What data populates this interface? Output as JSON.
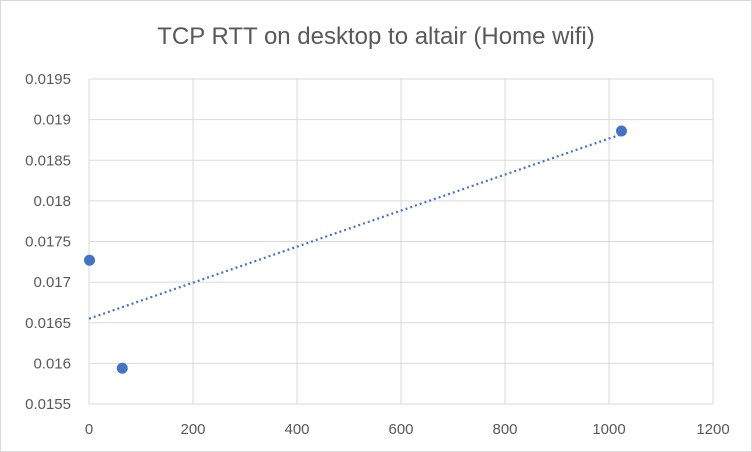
{
  "chart_data": {
    "type": "scatter",
    "title": "TCP RTT on desktop to altair (Home wifi)",
    "xlabel": "",
    "ylabel": "",
    "xlim": [
      0,
      1200
    ],
    "ylim": [
      0.0155,
      0.0195
    ],
    "x_ticks": [
      "0",
      "200",
      "400",
      "600",
      "800",
      "1000",
      "1200"
    ],
    "y_ticks": [
      "0.0155",
      "0.016",
      "0.0165",
      "0.017",
      "0.0175",
      "0.018",
      "0.0185",
      "0.019",
      "0.0195"
    ],
    "grid": true,
    "legend": "none",
    "series": [
      {
        "points": [
          {
            "x": 1,
            "y": 0.01727
          },
          {
            "x": 64,
            "y": 0.01594
          },
          {
            "x": 1024,
            "y": 0.01886
          }
        ],
        "color": "#4472c4"
      }
    ],
    "trendline": {
      "type": "linear",
      "style": "dotted",
      "color": "#4472c4",
      "start": {
        "x": 0,
        "y": 0.01655
      },
      "end": {
        "x": 1024,
        "y": 0.01882
      }
    }
  }
}
